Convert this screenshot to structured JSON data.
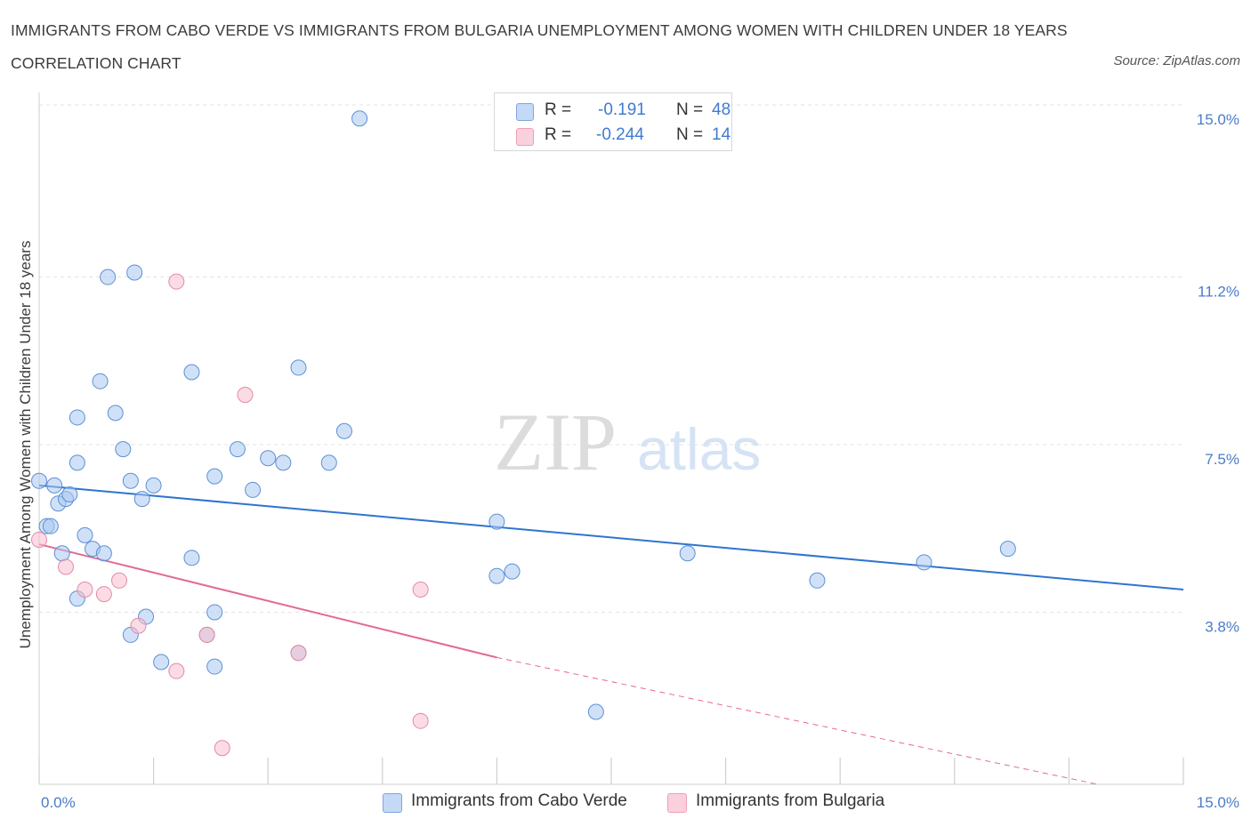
{
  "chart_data": {
    "type": "scatter",
    "title": "IMMIGRANTS FROM CABO VERDE VS IMMIGRANTS FROM BULGARIA UNEMPLOYMENT AMONG WOMEN WITH CHILDREN UNDER 18 YEARS CORRELATION CHART",
    "source": "Source: ZipAtlas.com",
    "xlabel": "",
    "ylabel": "Unemployment Among Women with Children Under 18 years",
    "xlim": [
      0,
      15
    ],
    "ylim": [
      0,
      15
    ],
    "x_tick_labels": [
      "0.0%",
      "15.0%"
    ],
    "y_ticks": [
      3.8,
      7.5,
      11.2,
      15.0
    ],
    "y_tick_labels": [
      "3.8%",
      "7.5%",
      "11.2%",
      "15.0%"
    ],
    "watermark": {
      "zip": "ZIP",
      "atlas": "atlas"
    },
    "legend": [
      {
        "r_label": "R =",
        "r_value": "-0.191",
        "n_label": "N =",
        "n_value": "48"
      },
      {
        "r_label": "R =",
        "r_value": "-0.244",
        "n_label": "N =",
        "n_value": "14"
      }
    ],
    "series": [
      {
        "name": "Immigrants from Cabo Verde",
        "color": "#a9c8f0",
        "stroke": "#5d8fd6",
        "trend_color": "#2f74d0",
        "trend": {
          "x0": 0,
          "y0": 6.6,
          "x1": 15,
          "y1": 4.3
        },
        "points": [
          [
            0.0,
            6.7
          ],
          [
            0.2,
            6.6
          ],
          [
            0.1,
            5.7
          ],
          [
            0.25,
            6.2
          ],
          [
            0.35,
            6.3
          ],
          [
            0.4,
            6.4
          ],
          [
            0.3,
            5.1
          ],
          [
            0.5,
            4.1
          ],
          [
            0.6,
            5.5
          ],
          [
            0.7,
            5.2
          ],
          [
            0.85,
            5.1
          ],
          [
            0.5,
            7.1
          ],
          [
            0.5,
            8.1
          ],
          [
            0.8,
            8.9
          ],
          [
            1.0,
            8.2
          ],
          [
            1.1,
            7.4
          ],
          [
            1.2,
            6.7
          ],
          [
            1.35,
            6.3
          ],
          [
            1.5,
            6.6
          ],
          [
            1.4,
            3.7
          ],
          [
            1.2,
            3.3
          ],
          [
            1.6,
            2.7
          ],
          [
            2.0,
            5.0
          ],
          [
            2.2,
            3.3
          ],
          [
            2.3,
            3.8
          ],
          [
            2.3,
            2.6
          ],
          [
            2.3,
            6.8
          ],
          [
            2.6,
            7.4
          ],
          [
            2.8,
            6.5
          ],
          [
            3.0,
            7.2
          ],
          [
            3.2,
            7.1
          ],
          [
            3.4,
            2.9
          ],
          [
            3.4,
            9.2
          ],
          [
            3.8,
            7.1
          ],
          [
            4.0,
            7.8
          ],
          [
            4.2,
            14.7
          ],
          [
            0.9,
            11.2
          ],
          [
            1.25,
            11.3
          ],
          [
            2.0,
            9.1
          ],
          [
            6.0,
            5.8
          ],
          [
            6.0,
            4.6
          ],
          [
            6.2,
            4.7
          ],
          [
            7.3,
            1.6
          ],
          [
            8.5,
            5.1
          ],
          [
            10.2,
            4.5
          ],
          [
            11.6,
            4.9
          ],
          [
            12.7,
            5.2
          ],
          [
            0.15,
            5.7
          ]
        ]
      },
      {
        "name": "Immigrants from Bulgaria",
        "color": "#f7bfd0",
        "stroke": "#e58aa6",
        "trend_color": "#e36a92",
        "trend": {
          "x0": 0,
          "y0": 5.3,
          "x1": 6.0,
          "y1": 2.8
        },
        "trend_dashed_to": {
          "x": 15,
          "y": -0.4
        },
        "points": [
          [
            0.0,
            5.4
          ],
          [
            0.35,
            4.8
          ],
          [
            0.6,
            4.3
          ],
          [
            0.85,
            4.2
          ],
          [
            1.05,
            4.5
          ],
          [
            1.3,
            3.5
          ],
          [
            1.8,
            11.1
          ],
          [
            1.8,
            2.5
          ],
          [
            2.2,
            3.3
          ],
          [
            2.4,
            0.8
          ],
          [
            2.7,
            8.6
          ],
          [
            3.4,
            2.9
          ],
          [
            5.0,
            4.3
          ],
          [
            5.0,
            1.4
          ]
        ]
      }
    ]
  }
}
